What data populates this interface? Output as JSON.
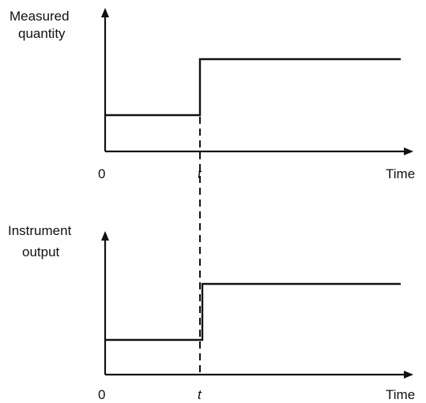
{
  "top_plot": {
    "ylabel_line1": "Measured",
    "ylabel_line2": "quantity",
    "x_origin": "0",
    "x_mark": "t",
    "xlabel": "Time"
  },
  "bottom_plot": {
    "ylabel_line1": "Instrument",
    "ylabel_line2": "output",
    "x_origin": "0",
    "x_mark": "t",
    "xlabel": "Time"
  },
  "chart_data": [
    {
      "type": "line",
      "ylabel": "Measured quantity",
      "xlabel": "Time",
      "x_tick_labels": [
        "0",
        "t"
      ],
      "series": [
        {
          "x": [
            "0",
            "t",
            "t",
            "end"
          ],
          "values": [
            "low",
            "low",
            "high",
            "high"
          ]
        }
      ]
    },
    {
      "type": "line",
      "ylabel": "Instrument output",
      "xlabel": "Time",
      "x_tick_labels": [
        "0",
        "t"
      ],
      "series": [
        {
          "x": [
            "0",
            "t",
            "t",
            "end"
          ],
          "values": [
            "low",
            "low",
            "high",
            "high"
          ]
        }
      ]
    }
  ],
  "colors": {
    "ink": "#111111"
  }
}
